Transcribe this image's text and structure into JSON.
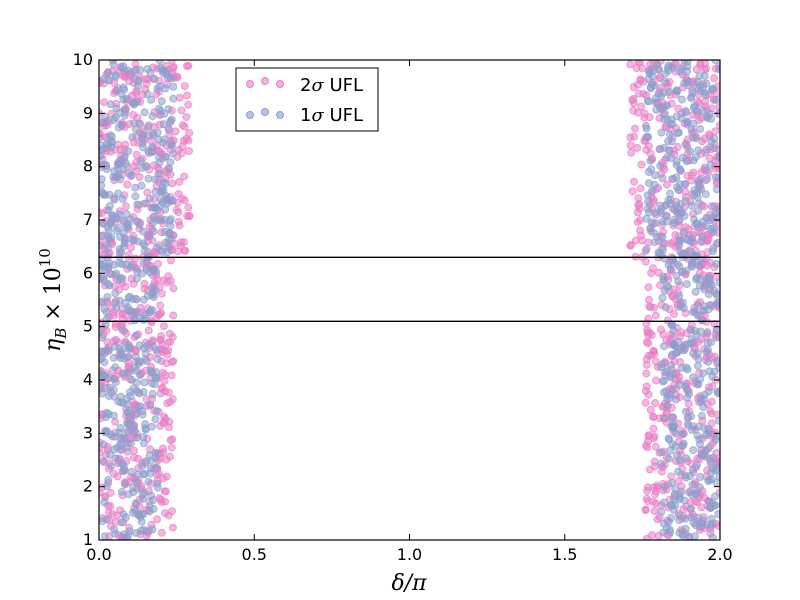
{
  "chart_data": {
    "type": "scatter",
    "xlim": [
      0.0,
      2.0
    ],
    "ylim": [
      1,
      10
    ],
    "xticks": [
      "0.0",
      "0.5",
      "1.0",
      "1.5",
      "2.0"
    ],
    "yticks": [
      "1",
      "2",
      "3",
      "4",
      "5",
      "6",
      "7",
      "8",
      "9",
      "10"
    ],
    "xlabel": "δ/π",
    "ylabel_main": "η",
    "ylabel_sub": "B",
    "ylabel_mult": " × 10",
    "ylabel_exp": "10",
    "grid": false,
    "legend_position": "top-left",
    "series": [
      {
        "name": "2σ UFL",
        "name_number": "2",
        "name_symbol": "σ",
        "name_text": " UFL",
        "color": "#e87fc6",
        "regions": [
          {
            "y": [
              1,
              6.3
            ],
            "x": [
              0.0,
              0.24
            ]
          },
          {
            "y": [
              6.3,
              10
            ],
            "x": [
              0.0,
              0.3
            ]
          },
          {
            "y": [
              1,
              6.3
            ],
            "x": [
              1.76,
              2.0
            ]
          },
          {
            "y": [
              6.3,
              10
            ],
            "x": [
              1.71,
              2.0
            ]
          }
        ]
      },
      {
        "name": "1σ UFL",
        "name_number": "1",
        "name_symbol": "σ",
        "name_text": " UFL",
        "color": "#8c9fcc",
        "regions": [
          {
            "y": [
              1,
              6.3
            ],
            "x": [
              0.0,
              0.19
            ]
          },
          {
            "y": [
              6.3,
              10
            ],
            "x": [
              0.0,
              0.24
            ]
          },
          {
            "y": [
              1,
              6.3
            ],
            "x": [
              1.81,
              2.0
            ]
          },
          {
            "y": [
              6.3,
              10
            ],
            "x": [
              1.76,
              2.0
            ]
          }
        ]
      }
    ],
    "horizontal_lines": [
      5.1,
      6.3
    ]
  }
}
